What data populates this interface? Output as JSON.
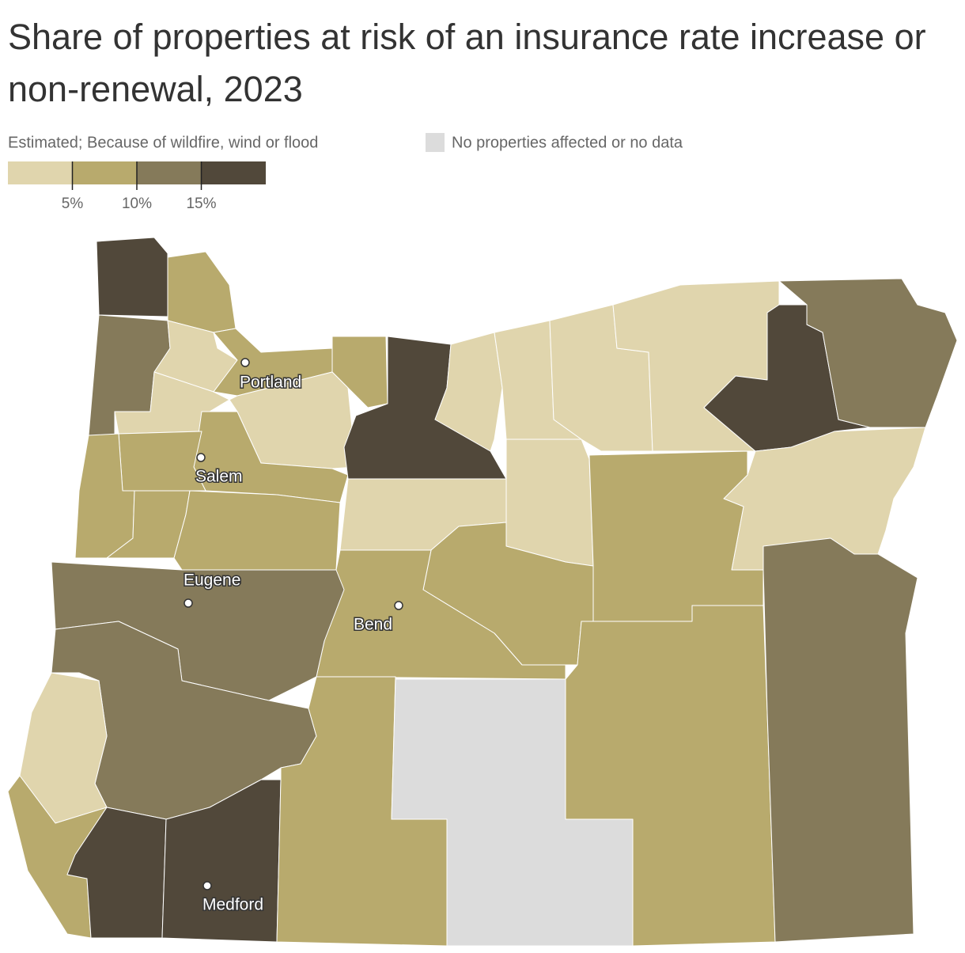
{
  "title": "Share of properties at risk of an insurance rate increase or non-renewal, 2023",
  "legend": {
    "subtitle": "Estimated; Because of wildfire, wind or flood",
    "no_data_label": "No properties affected or no data",
    "no_data_color": "#dcdcdc",
    "lim": [
      0,
      20
    ],
    "ticks": [
      {
        "value": 5,
        "label": "5%"
      },
      {
        "value": 10,
        "label": "10%"
      },
      {
        "value": 15,
        "label": "15%"
      }
    ],
    "colors": [
      "#e0d5ad",
      "#b8aa6d",
      "#857a5a",
      "#51483a"
    ]
  },
  "region_colors": [
    "#51483a",
    "#b8aa6d",
    "#857a5a",
    "#e0d5ad",
    "#b8aa6d",
    "#b8aa6d",
    "#e0d5ad",
    "#e0d5ad",
    "#b8aa6d",
    "#b8aa6d",
    "#b8aa6d",
    "#b8aa6d",
    "#b8aa6d",
    "#51483a",
    "#e0d5ad",
    "#e0d5ad",
    "#e0d5ad",
    "#e0d5ad",
    "#51483a",
    "#857a5a",
    "#e0d5ad",
    "#e0d5ad",
    "#e0d5ad",
    "#b8aa6d",
    "#b8aa6d",
    "#b8aa6d",
    "#857a5a",
    "#857a5a",
    "#e0d5ad",
    "#b8aa6d",
    "#51483a",
    "#51483a",
    "#b8aa6d",
    "#dcdcdc",
    "#b8aa6d",
    "#857a5a"
  ],
  "cities": [
    "Portland",
    "Salem",
    "Eugene",
    "Bend",
    "Medford"
  ]
}
